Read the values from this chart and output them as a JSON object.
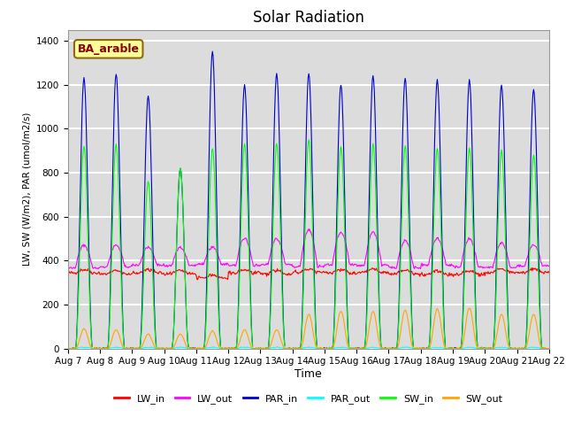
{
  "title": "Solar Radiation",
  "xlabel": "Time",
  "ylabel": "LW, SW (W/m2), PAR (umol/m2/s)",
  "ylim": [
    0,
    1450
  ],
  "yticks": [
    0,
    200,
    400,
    600,
    800,
    1000,
    1200,
    1400
  ],
  "annotation_text": "BA_arable",
  "annotation_color": "#8B0000",
  "annotation_bg": "#FFFF99",
  "n_days": 15,
  "start_day": 7,
  "colors": {
    "LW_in": "#FF0000",
    "LW_out": "#FF00FF",
    "PAR_in": "#0000CD",
    "PAR_out": "#00FFFF",
    "SW_in": "#00FF00",
    "SW_out": "#FFA500"
  },
  "background_color": "#DCDCDC",
  "grid_color": "#FFFFFF",
  "fig_bg": "#FFFFFF",
  "par_in_peaks": [
    1230,
    1250,
    1150,
    820,
    1350,
    1200,
    1250,
    1250,
    1200,
    1240,
    1230,
    1220,
    1220,
    1200,
    1180
  ],
  "lw_out_peaks": [
    470,
    470,
    460,
    460,
    460,
    500,
    500,
    540,
    530,
    530,
    490,
    500,
    500,
    480,
    470
  ],
  "sw_in_peaks": [
    920,
    930,
    760,
    820,
    910,
    930,
    930,
    950,
    920,
    930,
    920,
    910,
    910,
    900,
    880
  ],
  "sw_out_peaks": [
    90,
    85,
    65,
    65,
    80,
    85,
    85,
    155,
    170,
    170,
    175,
    180,
    185,
    155,
    155
  ]
}
